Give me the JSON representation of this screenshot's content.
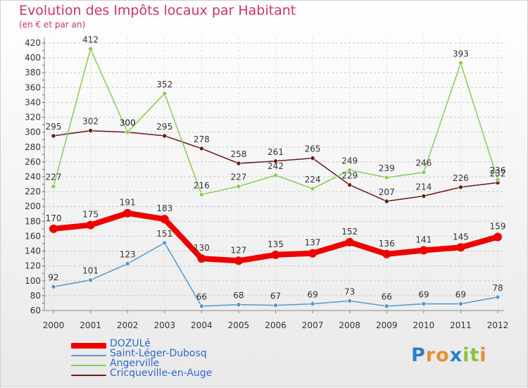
{
  "header": {
    "title": "Evolution des Impôts locaux par Habitant",
    "subtitle": "(en € et par an)"
  },
  "brand": {
    "letters": [
      "P",
      "r",
      "o",
      "x",
      "i",
      "t",
      "i"
    ],
    "colors": [
      "#2a7fc9",
      "#e8902a",
      "#e8902a",
      "#2a7fc9",
      "#8cc43c",
      "#8cc43c",
      "#e8902a"
    ]
  },
  "chart_data": {
    "type": "line",
    "x": [
      "2000",
      "2001",
      "2002",
      "2003",
      "2004",
      "2005",
      "2006",
      "2007",
      "2008",
      "2009",
      "2010",
      "2011",
      "2012"
    ],
    "ylim": [
      60,
      420
    ],
    "yticks": [
      60,
      80,
      100,
      120,
      140,
      160,
      180,
      200,
      220,
      240,
      260,
      280,
      300,
      320,
      340,
      360,
      380,
      400,
      420
    ],
    "grid": "dashed-horizontal",
    "legend_placement": "bottom-left",
    "series": [
      {
        "name": "DOZULé",
        "color": "#ee0000",
        "values": [
          170,
          175,
          191,
          183,
          130,
          127,
          135,
          137,
          152,
          136,
          141,
          145,
          159
        ]
      },
      {
        "name": "Saint-Léger-Dubosq",
        "color": "#5599cc",
        "values": [
          92,
          101,
          123,
          151,
          66,
          68,
          67,
          69,
          73,
          66,
          69,
          69,
          78
        ]
      },
      {
        "name": "Angerville",
        "color": "#88cc55",
        "values": [
          227,
          412,
          300,
          352,
          216,
          227,
          242,
          224,
          249,
          239,
          246,
          393,
          236
        ]
      },
      {
        "name": "Cricqueville-en-Auge",
        "color": "#6b1a1a",
        "values": [
          295,
          302,
          300,
          295,
          278,
          258,
          261,
          265,
          229,
          207,
          214,
          226,
          232
        ]
      }
    ]
  }
}
